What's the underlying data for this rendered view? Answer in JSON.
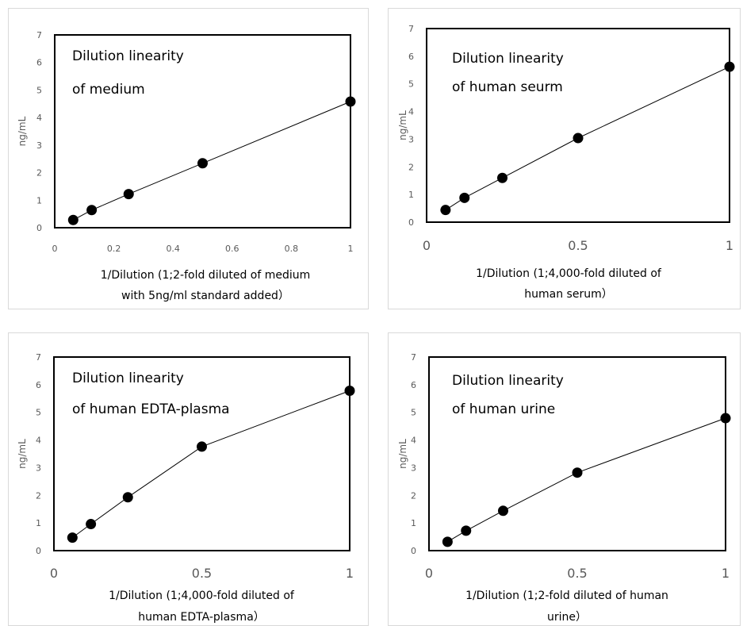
{
  "colors": {
    "line": "#000000",
    "marker": "#000000",
    "tick_text": "#595959",
    "frame": "#000000",
    "panel_border": "#d9d9d9"
  },
  "chart_data": [
    {
      "type": "line",
      "title_lines": [
        "Dilution linearity",
        "of medium"
      ],
      "xlabel_lines": [
        "1/Dilution (1;2-fold diluted of  medium",
        "with 5ng/ml  standard added）"
      ],
      "ylabel": "ng/mL",
      "xlim": [
        0,
        1
      ],
      "ylim": [
        0,
        7
      ],
      "xticks": [
        0,
        0.2,
        0.4,
        0.6,
        0.8,
        1
      ],
      "xtick_labels": [
        "0",
        "0.2",
        "0.4",
        "0.6",
        "0.8",
        "1"
      ],
      "yticks": [
        0,
        1,
        2,
        3,
        4,
        5,
        6,
        7
      ],
      "ytick_labels": [
        "0",
        "1",
        "2",
        "3",
        "4",
        "5",
        "6",
        "7"
      ],
      "x": [
        0.0625,
        0.125,
        0.25,
        0.5,
        1
      ],
      "y": [
        0.28,
        0.64,
        1.22,
        2.34,
        4.58
      ]
    },
    {
      "type": "line",
      "title_lines": [
        "Dilution linearity",
        "of human seurm"
      ],
      "xlabel_lines": [
        "1/Dilution (1;4,000-fold diluted of",
        "human serum）"
      ],
      "ylabel": "ng/mL",
      "xlim": [
        0,
        1
      ],
      "ylim": [
        0,
        7
      ],
      "xticks": [
        0,
        0.5,
        1
      ],
      "xtick_labels": [
        "0",
        "0.5",
        "1"
      ],
      "yticks": [
        0,
        1,
        2,
        3,
        4,
        5,
        6,
        7
      ],
      "ytick_labels": [
        "0",
        "1",
        "2",
        "3",
        "4",
        "5",
        "6",
        "7"
      ],
      "x": [
        0.0625,
        0.125,
        0.25,
        0.5,
        1
      ],
      "y": [
        0.44,
        0.88,
        1.6,
        3.04,
        5.62
      ]
    },
    {
      "type": "line",
      "title_lines": [
        "Dilution linearity",
        "of human EDTA-plasma"
      ],
      "xlabel_lines": [
        "1/Dilution (1;4,000-fold diluted of",
        "human EDTA-plasma）"
      ],
      "ylabel": "ng/mL",
      "xlim": [
        0,
        1
      ],
      "ylim": [
        0,
        7
      ],
      "xticks": [
        0,
        0.5,
        1
      ],
      "xtick_labels": [
        "0",
        "0.5",
        "1"
      ],
      "yticks": [
        0,
        1,
        2,
        3,
        4,
        5,
        6,
        7
      ],
      "ytick_labels": [
        "0",
        "1",
        "2",
        "3",
        "4",
        "5",
        "6",
        "7"
      ],
      "x": [
        0.0625,
        0.125,
        0.25,
        0.5,
        1
      ],
      "y": [
        0.47,
        0.96,
        1.93,
        3.76,
        5.78
      ]
    },
    {
      "type": "line",
      "title_lines": [
        "Dilution linearity",
        "of human urine"
      ],
      "xlabel_lines": [
        "1/Dilution (1;2-fold diluted of  human",
        "urine）"
      ],
      "ylabel": "ng/mL",
      "xlim": [
        0,
        1
      ],
      "ylim": [
        0,
        7
      ],
      "xticks": [
        0,
        0.5,
        1
      ],
      "xtick_labels": [
        "0",
        "0.5",
        "1"
      ],
      "yticks": [
        0,
        1,
        2,
        3,
        4,
        5,
        6,
        7
      ],
      "ytick_labels": [
        "0",
        "1",
        "2",
        "3",
        "4",
        "5",
        "6",
        "7"
      ],
      "x": [
        0.0625,
        0.125,
        0.25,
        0.5,
        1
      ],
      "y": [
        0.32,
        0.72,
        1.44,
        2.82,
        4.79
      ]
    }
  ]
}
